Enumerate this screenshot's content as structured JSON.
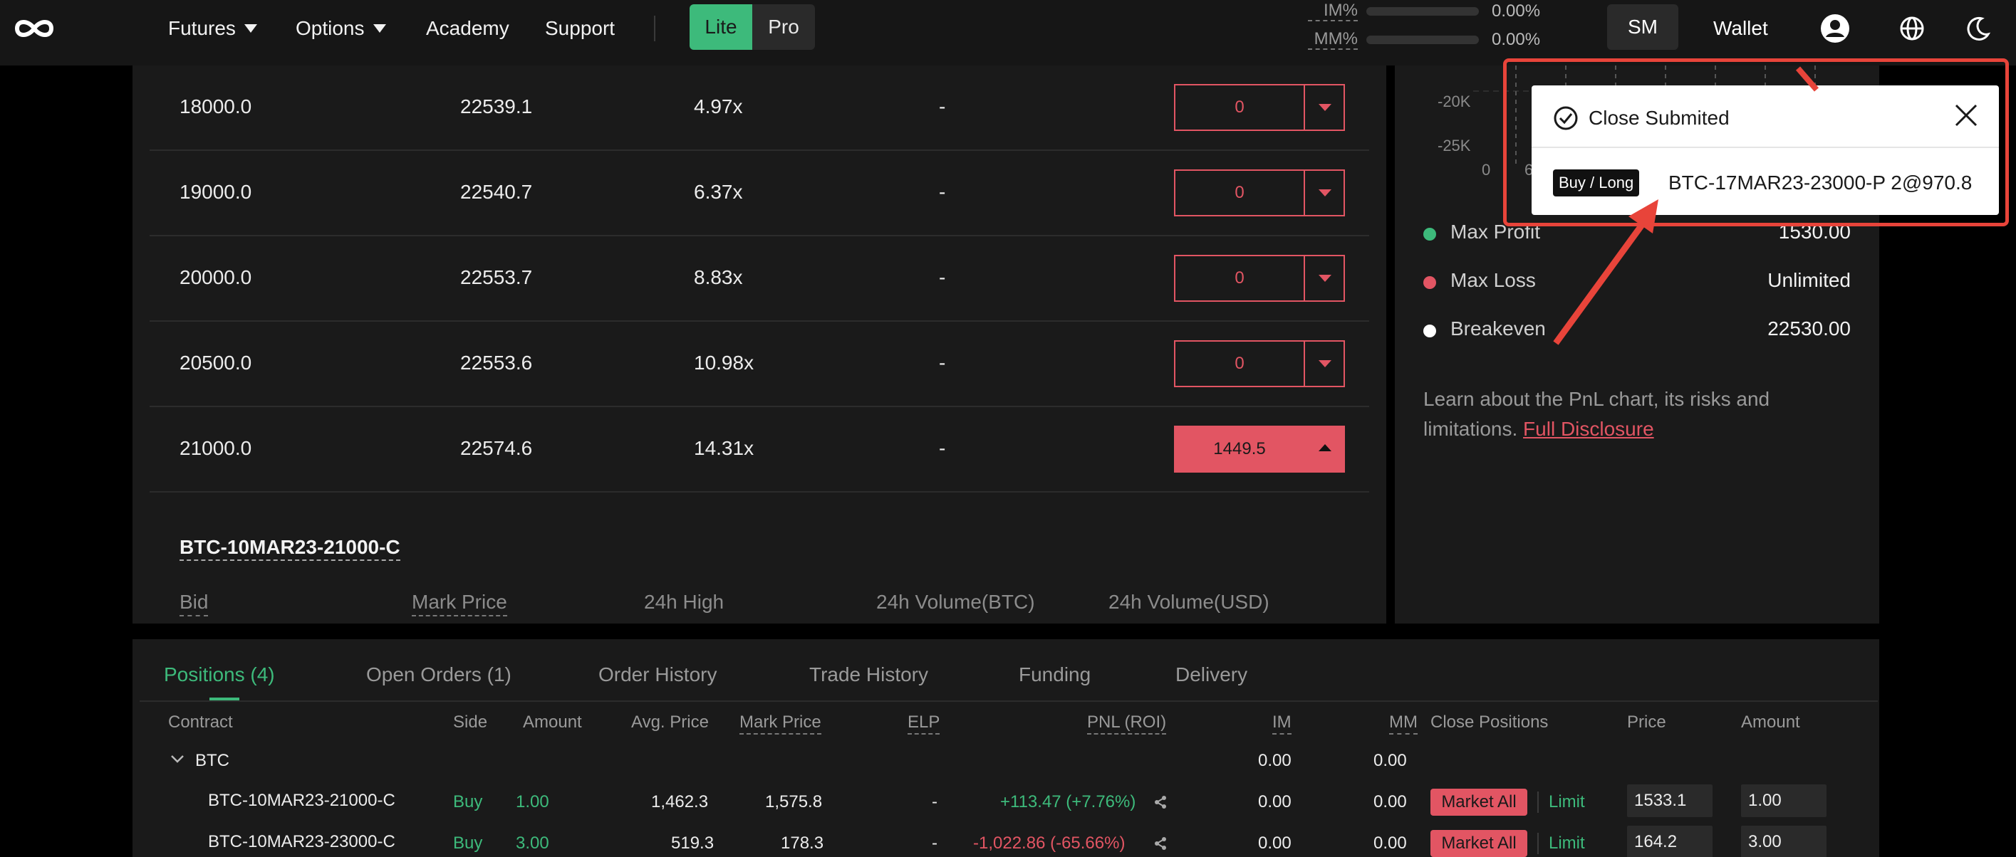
{
  "nav": {
    "items": [
      {
        "label": "Futures",
        "dropdown": true
      },
      {
        "label": "Options",
        "dropdown": true
      },
      {
        "label": "Academy",
        "dropdown": false
      },
      {
        "label": "Support",
        "dropdown": false
      }
    ],
    "mode": {
      "lite": "Lite",
      "pro": "Pro",
      "active": "Lite"
    },
    "margin": {
      "im_label": "IM%",
      "im_value": "0.00%",
      "mm_label": "MM%",
      "mm_value": "0.00%"
    },
    "sm_label": "SM",
    "wallet_label": "Wallet",
    "icons": [
      "logo-infinity-icon",
      "user-icon",
      "globe-icon",
      "moon-icon"
    ]
  },
  "strikes": [
    {
      "strike": "18000.0",
      "price": "22539.1",
      "leverage": "4.97x",
      "change": "-",
      "qty": "0",
      "active": false
    },
    {
      "strike": "19000.0",
      "price": "22540.7",
      "leverage": "6.37x",
      "change": "-",
      "qty": "0",
      "active": false
    },
    {
      "strike": "20000.0",
      "price": "22553.7",
      "leverage": "8.83x",
      "change": "-",
      "qty": "0",
      "active": false
    },
    {
      "strike": "20500.0",
      "price": "22553.6",
      "leverage": "10.98x",
      "change": "-",
      "qty": "0",
      "active": false
    },
    {
      "strike": "21000.0",
      "price": "22574.6",
      "leverage": "14.31x",
      "change": "-",
      "qty": "1449.5",
      "active": true
    }
  ],
  "contract": {
    "title": "BTC-10MAR23-21000-C",
    "stats": [
      "Bid",
      "Mark Price",
      "24h High",
      "24h Volume(BTC)",
      "24h Volume(USD)"
    ]
  },
  "pnl": {
    "axis_y": [
      "-20K",
      "-25K"
    ],
    "axis_x": [
      "0",
      "6"
    ],
    "legend": [
      {
        "label": "Max Profit",
        "value": "1530.00",
        "color": "#3dba7b"
      },
      {
        "label": "Max Loss",
        "value": "Unlimited",
        "color": "#e25563"
      },
      {
        "label": "Breakeven",
        "value": "22530.00",
        "color": "#ffffff"
      }
    ],
    "learn_text": "Learn about the PnL chart, its risks and limitations.",
    "learn_link": "Full Disclosure"
  },
  "positions": {
    "tabs": [
      {
        "label": "Positions (4)",
        "active": true
      },
      {
        "label": "Open Orders (1)",
        "active": false
      },
      {
        "label": "Order History",
        "active": false
      },
      {
        "label": "Trade History",
        "active": false
      },
      {
        "label": "Funding",
        "active": false
      },
      {
        "label": "Delivery",
        "active": false
      }
    ],
    "headers": [
      "Contract",
      "Side",
      "Amount",
      "Avg. Price",
      "Mark Price",
      "ELP",
      "PNL (ROI)",
      "IM",
      "MM",
      "Close Positions",
      "Price",
      "Amount"
    ],
    "group": {
      "name": "BTC",
      "im": "0.00",
      "mm": "0.00"
    },
    "rows": [
      {
        "contract": "BTC-10MAR23-21000-C",
        "side": "Buy",
        "amount": "1.00",
        "avg_price": "1,462.3",
        "mark_price": "1,575.8",
        "elp": "-",
        "pnl": "+113.47 (+7.76%)",
        "pnl_positive": true,
        "im": "0.00",
        "mm": "0.00",
        "market_all": "Market All",
        "limit": "Limit",
        "price": "1533.1",
        "amount_input": "1.00"
      },
      {
        "contract": "BTC-10MAR23-23000-C",
        "side": "Buy",
        "amount": "3.00",
        "avg_price": "519.3",
        "mark_price": "178.3",
        "elp": "-",
        "pnl": "-1,022.86 (-65.66%)",
        "pnl_positive": false,
        "im": "0.00",
        "mm": "0.00",
        "market_all": "Market All",
        "limit": "Limit",
        "price": "164.2",
        "amount_input": "3.00"
      }
    ]
  },
  "toast": {
    "title": "Close Submited",
    "badge": "Buy / Long",
    "detail": "BTC-17MAR23-23000-P 2@970.8"
  },
  "colors": {
    "accent_green": "#3dba7b",
    "accent_red": "#e25563",
    "annotation_red": "#e8443a"
  }
}
